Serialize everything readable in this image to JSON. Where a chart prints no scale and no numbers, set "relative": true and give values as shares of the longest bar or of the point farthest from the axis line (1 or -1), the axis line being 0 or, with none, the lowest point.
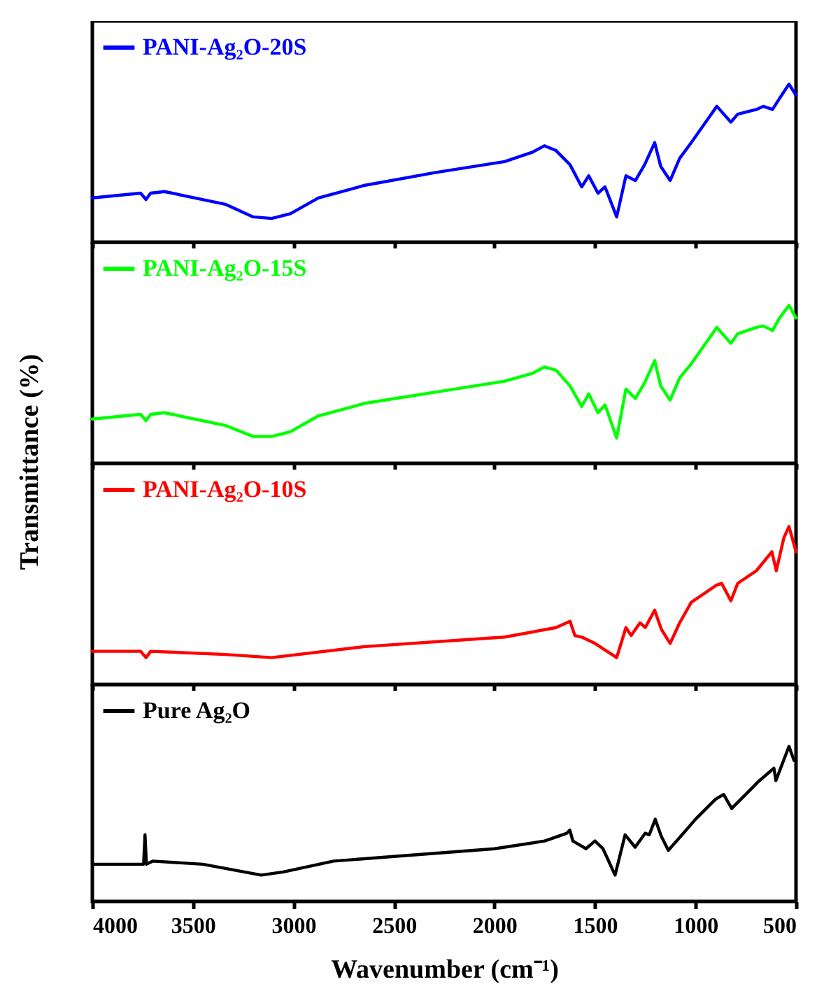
{
  "chart_data": [
    {
      "type": "line",
      "relative": true,
      "ylabel": "Transmittance (%)",
      "legend": "top left",
      "tick_labels": false,
      "xlim": [
        4000,
        500
      ],
      "xticks": [
        4000,
        3500,
        3000,
        2500,
        2000,
        1500,
        1000,
        500
      ],
      "x": [
        4000,
        3760,
        3733,
        3710,
        3641,
        3339,
        3200,
        3108,
        3015,
        2876,
        2644,
        2296,
        1949,
        1810,
        1752,
        1694,
        1624,
        1566,
        1531,
        1485,
        1450,
        1392,
        1346,
        1299,
        1253,
        1203,
        1173,
        1126,
        1079,
        1021,
        894,
        824,
        790,
        697,
        663,
        617,
        582,
        535,
        500
      ],
      "series": [
        {
          "name": "PANI-Ag₂O-20S",
          "color": "#0000ff",
          "values": [
            0.28,
            0.31,
            0.27,
            0.31,
            0.32,
            0.24,
            0.16,
            0.15,
            0.18,
            0.28,
            0.36,
            0.44,
            0.51,
            0.57,
            0.61,
            0.58,
            0.49,
            0.35,
            0.42,
            0.31,
            0.35,
            0.16,
            0.42,
            0.39,
            0.49,
            0.63,
            0.48,
            0.39,
            0.53,
            0.63,
            0.86,
            0.76,
            0.81,
            0.84,
            0.86,
            0.84,
            0.91,
            1,
            0.93
          ]
        }
      ]
    },
    {
      "type": "line",
      "relative": true,
      "legend": "top left",
      "tick_labels": false,
      "xlim": [
        4000,
        500
      ],
      "xticks": [
        4000,
        3500,
        3000,
        2500,
        2000,
        1500,
        1000,
        500
      ],
      "x": [
        4000,
        3760,
        3733,
        3710,
        3641,
        3339,
        3200,
        3108,
        3015,
        2876,
        2644,
        2296,
        1949,
        1810,
        1752,
        1694,
        1624,
        1566,
        1531,
        1485,
        1450,
        1392,
        1346,
        1299,
        1253,
        1203,
        1173,
        1126,
        1079,
        1021,
        894,
        824,
        790,
        697,
        663,
        617,
        582,
        535,
        500
      ],
      "series": [
        {
          "name": "PANI-Ag₂O-15S",
          "color": "#00ff00",
          "values": [
            0.28,
            0.31,
            0.27,
            0.31,
            0.32,
            0.24,
            0.17,
            0.17,
            0.2,
            0.3,
            0.38,
            0.45,
            0.52,
            0.57,
            0.61,
            0.59,
            0.49,
            0.36,
            0.44,
            0.32,
            0.37,
            0.16,
            0.47,
            0.41,
            0.51,
            0.65,
            0.49,
            0.4,
            0.54,
            0.63,
            0.86,
            0.76,
            0.82,
            0.86,
            0.87,
            0.84,
            0.92,
            1,
            0.92
          ]
        }
      ]
    },
    {
      "type": "line",
      "relative": true,
      "legend": "top left",
      "tick_labels": false,
      "xlim": [
        4000,
        500
      ],
      "xticks": [
        4000,
        3500,
        3000,
        2500,
        2000,
        1500,
        1000,
        500
      ],
      "x": [
        4000,
        3760,
        3733,
        3710,
        3339,
        3108,
        2644,
        1949,
        1694,
        1624,
        1600,
        1566,
        1500,
        1392,
        1346,
        1320,
        1276,
        1250,
        1203,
        1170,
        1126,
        1079,
        1021,
        894,
        870,
        824,
        790,
        697,
        620,
        598,
        560,
        535,
        500
      ],
      "series": [
        {
          "name": "PANI-Ag₂O-10S",
          "color": "#ff0000",
          "values": [
            0.21,
            0.21,
            0.17,
            0.21,
            0.19,
            0.17,
            0.24,
            0.3,
            0.36,
            0.4,
            0.31,
            0.3,
            0.26,
            0.17,
            0.36,
            0.31,
            0.39,
            0.36,
            0.47,
            0.35,
            0.26,
            0.39,
            0.52,
            0.63,
            0.64,
            0.53,
            0.64,
            0.72,
            0.84,
            0.72,
            0.93,
            1,
            0.84
          ]
        }
      ]
    },
    {
      "type": "line",
      "relative": true,
      "xlabel": "Wavenumber (cm⁻¹)",
      "legend": "top left",
      "tick_labels": "x",
      "xlim": [
        4000,
        500
      ],
      "xticks": [
        4000,
        3500,
        3000,
        2500,
        2000,
        1500,
        1000,
        500
      ],
      "x": [
        4000,
        3745,
        3738,
        3731,
        3700,
        3450,
        3160,
        3050,
        2800,
        2500,
        2000,
        1750,
        1640,
        1625,
        1610,
        1545,
        1500,
        1460,
        1400,
        1350,
        1300,
        1250,
        1230,
        1200,
        1170,
        1135,
        1060,
        1000,
        900,
        860,
        820,
        720,
        690,
        610,
        600,
        535,
        510
      ],
      "series": [
        {
          "name": "Pure Ag₂O",
          "color": "#000000",
          "values": [
            0.24,
            0.24,
            0.43,
            0.24,
            0.26,
            0.24,
            0.17,
            0.19,
            0.26,
            0.29,
            0.34,
            0.39,
            0.44,
            0.46,
            0.39,
            0.34,
            0.39,
            0.34,
            0.17,
            0.43,
            0.35,
            0.44,
            0.43,
            0.53,
            0.42,
            0.33,
            0.44,
            0.53,
            0.66,
            0.69,
            0.6,
            0.73,
            0.77,
            0.86,
            0.78,
            1,
            0.91
          ]
        }
      ]
    }
  ]
}
